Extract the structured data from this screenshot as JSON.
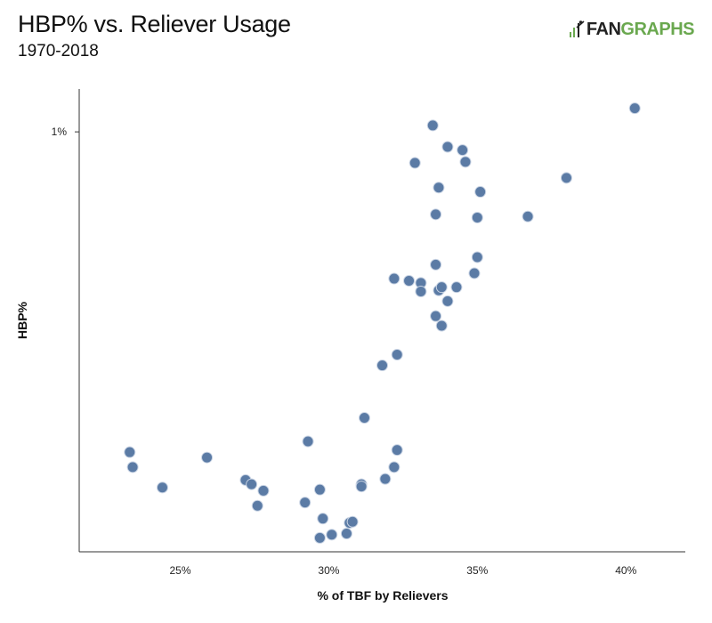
{
  "header": {
    "title": "HBP% vs. Reliever Usage",
    "subtitle": "1970-2018",
    "logo_fan": "FAN",
    "logo_graphs": "GRAPHS"
  },
  "colors": {
    "dot": "#5b7ba5",
    "logo_green": "#6aa84f"
  },
  "chart_data": {
    "type": "scatter",
    "title": "HBP% vs. Reliever Usage",
    "subtitle": "1970-2018",
    "xlabel": "% of TBF by Relievers",
    "ylabel": "HBP%",
    "xlim": [
      21.6,
      42.0
    ],
    "ylim": [
      0.608,
      1.04
    ],
    "xticks": [
      {
        "value": 25,
        "label": "25%"
      },
      {
        "value": 30,
        "label": "30%"
      },
      {
        "value": 35,
        "label": "35%"
      },
      {
        "value": 40,
        "label": "40%"
      }
    ],
    "yticks": [
      {
        "value": 1.0,
        "label": "1%"
      }
    ],
    "grid": false,
    "points": [
      {
        "x": 23.3,
        "y": 0.701
      },
      {
        "x": 23.4,
        "y": 0.687
      },
      {
        "x": 24.4,
        "y": 0.668
      },
      {
        "x": 25.9,
        "y": 0.696
      },
      {
        "x": 27.2,
        "y": 0.675
      },
      {
        "x": 27.4,
        "y": 0.671
      },
      {
        "x": 27.6,
        "y": 0.651
      },
      {
        "x": 27.8,
        "y": 0.665
      },
      {
        "x": 29.2,
        "y": 0.654
      },
      {
        "x": 29.3,
        "y": 0.711
      },
      {
        "x": 29.7,
        "y": 0.621
      },
      {
        "x": 29.7,
        "y": 0.666
      },
      {
        "x": 29.8,
        "y": 0.639
      },
      {
        "x": 30.1,
        "y": 0.624
      },
      {
        "x": 30.6,
        "y": 0.625
      },
      {
        "x": 30.7,
        "y": 0.635
      },
      {
        "x": 30.8,
        "y": 0.636
      },
      {
        "x": 31.1,
        "y": 0.671
      },
      {
        "x": 31.1,
        "y": 0.669
      },
      {
        "x": 31.2,
        "y": 0.733
      },
      {
        "x": 31.8,
        "y": 0.782
      },
      {
        "x": 31.9,
        "y": 0.676
      },
      {
        "x": 32.2,
        "y": 0.687
      },
      {
        "x": 32.2,
        "y": 0.863
      },
      {
        "x": 32.3,
        "y": 0.792
      },
      {
        "x": 32.3,
        "y": 0.703
      },
      {
        "x": 32.7,
        "y": 0.861
      },
      {
        "x": 32.9,
        "y": 0.971
      },
      {
        "x": 33.1,
        "y": 0.859
      },
      {
        "x": 33.1,
        "y": 0.851
      },
      {
        "x": 33.5,
        "y": 1.006
      },
      {
        "x": 33.6,
        "y": 0.828
      },
      {
        "x": 33.6,
        "y": 0.876
      },
      {
        "x": 33.6,
        "y": 0.923
      },
      {
        "x": 33.7,
        "y": 0.852
      },
      {
        "x": 33.7,
        "y": 0.948
      },
      {
        "x": 33.8,
        "y": 0.855
      },
      {
        "x": 33.8,
        "y": 0.819
      },
      {
        "x": 34.0,
        "y": 0.842
      },
      {
        "x": 34.0,
        "y": 0.986
      },
      {
        "x": 34.3,
        "y": 0.855
      },
      {
        "x": 34.5,
        "y": 0.983
      },
      {
        "x": 34.6,
        "y": 0.972
      },
      {
        "x": 34.9,
        "y": 0.868
      },
      {
        "x": 35.0,
        "y": 0.883
      },
      {
        "x": 35.0,
        "y": 0.92
      },
      {
        "x": 35.1,
        "y": 0.944
      },
      {
        "x": 36.7,
        "y": 0.921
      },
      {
        "x": 38.0,
        "y": 0.957
      },
      {
        "x": 40.3,
        "y": 1.022
      }
    ]
  }
}
